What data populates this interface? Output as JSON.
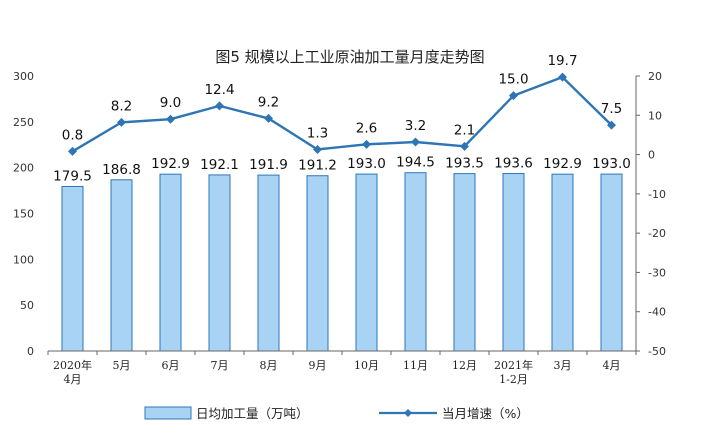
{
  "chart_data": {
    "type": "bar",
    "title": "图5  规模以上工业原油加工量月度走势图",
    "categories": [
      [
        "2020年",
        "4月"
      ],
      [
        "5月"
      ],
      [
        "6月"
      ],
      [
        "7月"
      ],
      [
        "8月"
      ],
      [
        "9月"
      ],
      [
        "10月"
      ],
      [
        "11月"
      ],
      [
        "12月"
      ],
      [
        "2021年",
        "1-2月"
      ],
      [
        "3月"
      ],
      [
        "4月"
      ]
    ],
    "series": [
      {
        "name": "日均加工量（万吨）",
        "type": "bar",
        "axis": "left",
        "color": "#a9d3f5",
        "values": [
          179.5,
          186.8,
          192.9,
          192.1,
          191.9,
          191.2,
          193.0,
          194.5,
          193.5,
          193.6,
          192.9,
          193.0
        ],
        "labels": [
          "179.5",
          "186.8",
          "192.9",
          "192.1",
          "191.9",
          "191.2",
          "193.0",
          "194.5",
          "193.5",
          "193.6",
          "192.9",
          "193.0"
        ]
      },
      {
        "name": "当月增速（%）",
        "type": "line",
        "axis": "right",
        "color": "#2e75b6",
        "values": [
          0.8,
          8.2,
          9.0,
          12.4,
          9.2,
          1.3,
          2.6,
          3.2,
          2.1,
          15.0,
          19.7,
          7.5
        ],
        "labels": [
          "0.8",
          "8.2",
          "9.0",
          "12.4",
          "9.2",
          "1.3",
          "2.6",
          "3.2",
          "2.1",
          "15.0",
          "19.7",
          "7.5"
        ]
      }
    ],
    "y_left": {
      "ylim": [
        0,
        300
      ],
      "ticks": [
        "0",
        "50",
        "100",
        "150",
        "200",
        "250",
        "300"
      ]
    },
    "y_right": {
      "ylim": [
        -50,
        20
      ],
      "ticks": [
        "-50",
        "-40",
        "-30",
        "-20",
        "-10",
        "0",
        "10",
        "20"
      ]
    },
    "grid": false,
    "legend_position": "bottom"
  }
}
